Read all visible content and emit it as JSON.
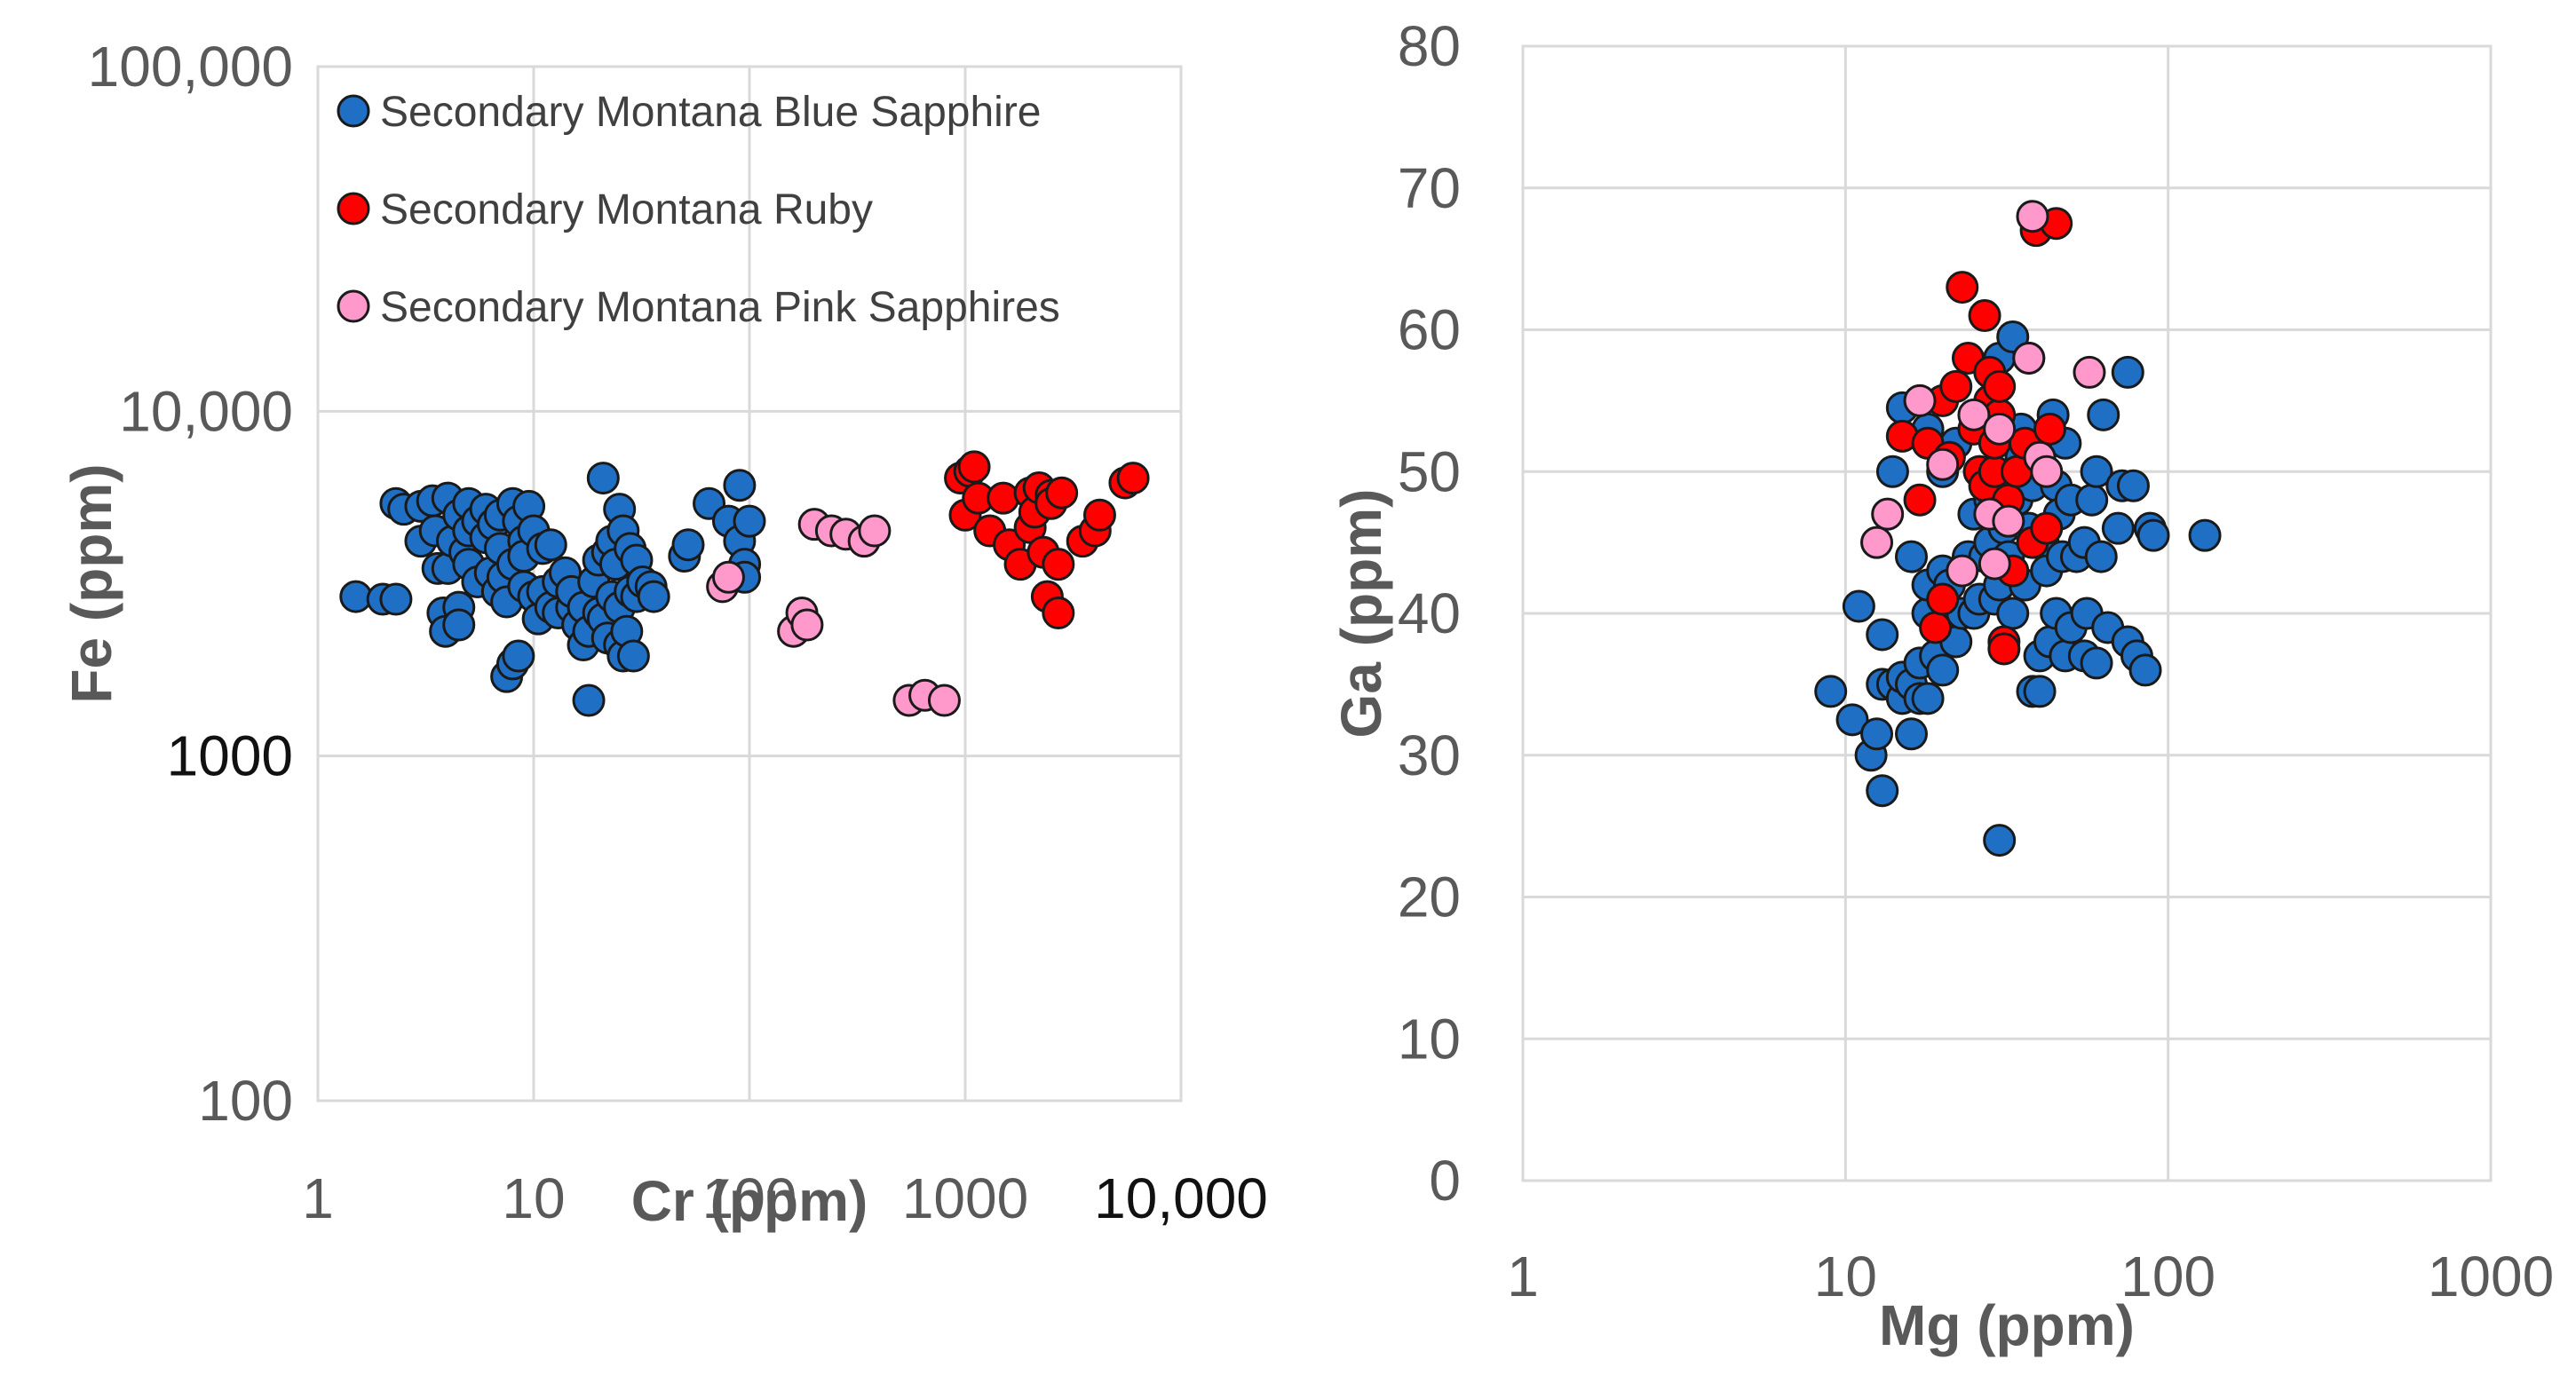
{
  "chart_data": [
    {
      "type": "scatter",
      "xscale": "log",
      "yscale": "log",
      "xlabel": "Cr (ppm)",
      "ylabel": "Fe (ppm)",
      "xlim": [
        1,
        10000
      ],
      "ylim": [
        100,
        100000
      ],
      "x_ticks": [
        1,
        10,
        100,
        1000,
        10000
      ],
      "x_tick_labels": [
        "1",
        "10",
        "100",
        "1000",
        "10,000"
      ],
      "y_ticks": [
        100,
        1000,
        10000,
        100000
      ],
      "y_tick_labels": [
        "100",
        "1000",
        "10,000",
        "100,000"
      ],
      "legend_position": "top-left",
      "series": [
        {
          "name": "Secondary Montana Blue Sapphire",
          "color": "#1f6fc5",
          "points": [
            [
              1.5,
              2900
            ],
            [
              2.0,
              2850
            ],
            [
              2.3,
              2850
            ],
            [
              2.3,
              5400
            ],
            [
              2.5,
              5200
            ],
            [
              3.0,
              4200
            ],
            [
              3.0,
              5300
            ],
            [
              3.4,
              5500
            ],
            [
              3.5,
              4500
            ],
            [
              3.6,
              3500
            ],
            [
              3.8,
              2600
            ],
            [
              3.9,
              2300
            ],
            [
              4.0,
              5600
            ],
            [
              4.0,
              3500
            ],
            [
              4.2,
              4200
            ],
            [
              4.5,
              5000
            ],
            [
              4.5,
              2700
            ],
            [
              4.5,
              2400
            ],
            [
              4.8,
              3900
            ],
            [
              5.0,
              5400
            ],
            [
              5.0,
              4500
            ],
            [
              5.0,
              3600
            ],
            [
              5.5,
              4800
            ],
            [
              5.5,
              3200
            ],
            [
              6.0,
              4300
            ],
            [
              6.0,
              5200
            ],
            [
              6.3,
              3400
            ],
            [
              6.5,
              4700
            ],
            [
              6.8,
              3000
            ],
            [
              7.0,
              5000
            ],
            [
              7.0,
              4000
            ],
            [
              7.2,
              3300
            ],
            [
              7.5,
              2800
            ],
            [
              7.5,
              1700
            ],
            [
              8.0,
              5400
            ],
            [
              8.0,
              3600
            ],
            [
              8.0,
              1850
            ],
            [
              8.5,
              4800
            ],
            [
              8.5,
              1950
            ],
            [
              9.0,
              4200
            ],
            [
              9.0,
              3800
            ],
            [
              9.0,
              3100
            ],
            [
              9.5,
              5300
            ],
            [
              10.0,
              2900
            ],
            [
              10.0,
              4500
            ],
            [
              10.5,
              2500
            ],
            [
              11.0,
              4000
            ],
            [
              11.0,
              3000
            ],
            [
              12.0,
              4100
            ],
            [
              12.0,
              2700
            ],
            [
              13.0,
              3200
            ],
            [
              13.0,
              2600
            ],
            [
              14.0,
              3400
            ],
            [
              15.0,
              2700
            ],
            [
              15.0,
              3000
            ],
            [
              16.0,
              2400
            ],
            [
              17.0,
              2100
            ],
            [
              17.0,
              2700
            ],
            [
              18.0,
              1450
            ],
            [
              18.0,
              2300
            ],
            [
              19.0,
              3200
            ],
            [
              20.0,
              3700
            ],
            [
              20.0,
              2600
            ],
            [
              21.0,
              6400
            ],
            [
              21.0,
              2500
            ],
            [
              22.0,
              3900
            ],
            [
              22.0,
              2200
            ],
            [
              23.0,
              4200
            ],
            [
              23.0,
              2900
            ],
            [
              24.0,
              3600
            ],
            [
              25.0,
              5200
            ],
            [
              25.0,
              2100
            ],
            [
              25.0,
              2700
            ],
            [
              26.0,
              4500
            ],
            [
              26.0,
              1950
            ],
            [
              27.0,
              2300
            ],
            [
              28.0,
              3000
            ],
            [
              28.0,
              4000
            ],
            [
              29.0,
              1950
            ],
            [
              30.0,
              3700
            ],
            [
              30.0,
              2900
            ],
            [
              32.0,
              3200
            ],
            [
              35.0,
              3100
            ],
            [
              36.0,
              2900
            ],
            [
              50.0,
              3800
            ],
            [
              52.0,
              4100
            ],
            [
              65.0,
              5400
            ],
            [
              80.0,
              4800
            ],
            [
              90.0,
              6100
            ],
            [
              90.0,
              4200
            ],
            [
              95.0,
              3600
            ],
            [
              95.0,
              3300
            ],
            [
              100.0,
              4800
            ]
          ]
        },
        {
          "name": "Secondary Montana Ruby",
          "color": "#ff0000",
          "points": [
            [
              950,
              6400
            ],
            [
              1000,
              5000
            ],
            [
              1050,
              6700
            ],
            [
              1100,
              6900
            ],
            [
              1150,
              5600
            ],
            [
              1300,
              4500
            ],
            [
              1500,
              5600
            ],
            [
              1600,
              4100
            ],
            [
              1800,
              3600
            ],
            [
              2000,
              5800
            ],
            [
              2000,
              4600
            ],
            [
              2100,
              5100
            ],
            [
              2200,
              6000
            ],
            [
              2300,
              3900
            ],
            [
              2400,
              2900
            ],
            [
              2500,
              5700
            ],
            [
              2500,
              5400
            ],
            [
              2700,
              3600
            ],
            [
              2700,
              2600
            ],
            [
              2800,
              5800
            ],
            [
              3500,
              4200
            ],
            [
              4000,
              4500
            ],
            [
              4200,
              5000
            ],
            [
              5500,
              6200
            ],
            [
              6000,
              6400
            ]
          ]
        },
        {
          "name": "Secondary Montana Pink Sapphires",
          "color": "#ff99cc",
          "points": [
            [
              75,
              3100
            ],
            [
              80,
              3300
            ],
            [
              160,
              2300
            ],
            [
              175,
              2600
            ],
            [
              185,
              2400
            ],
            [
              200,
              4700
            ],
            [
              240,
              4500
            ],
            [
              280,
              4400
            ],
            [
              340,
              4200
            ],
            [
              380,
              4500
            ],
            [
              550,
              1450
            ],
            [
              650,
              1500
            ],
            [
              800,
              1450
            ]
          ]
        }
      ]
    },
    {
      "type": "scatter",
      "xscale": "log",
      "yscale": "linear",
      "xlabel": "Mg (ppm)",
      "ylabel": "Ga (ppm)",
      "xlim": [
        1,
        1000
      ],
      "ylim": [
        0,
        80
      ],
      "x_ticks": [
        1,
        10,
        100,
        1000
      ],
      "x_tick_labels": [
        "1",
        "10",
        "100",
        "1000"
      ],
      "y_ticks": [
        0,
        10,
        20,
        30,
        40,
        50,
        60,
        70,
        80
      ],
      "y_tick_labels": [
        "0",
        "10",
        "20",
        "30",
        "40",
        "50",
        "60",
        "70",
        "80"
      ],
      "series": [
        {
          "name": "Secondary Montana Blue Sapphire",
          "color": "#1f6fc5",
          "points": [
            [
              9,
              34.5
            ],
            [
              10.5,
              32.5
            ],
            [
              11,
              40.5
            ],
            [
              12,
              30
            ],
            [
              12.5,
              31.5
            ],
            [
              13,
              27.5
            ],
            [
              13,
              35
            ],
            [
              13,
              38.5
            ],
            [
              14,
              35
            ],
            [
              14,
              50
            ],
            [
              15,
              34
            ],
            [
              15,
              35.5
            ],
            [
              15,
              54.5
            ],
            [
              16,
              31.5
            ],
            [
              16,
              35
            ],
            [
              16,
              44
            ],
            [
              17,
              34
            ],
            [
              17,
              36.5
            ],
            [
              17,
              55
            ],
            [
              18,
              34
            ],
            [
              18,
              40
            ],
            [
              18,
              42
            ],
            [
              18,
              53
            ],
            [
              19,
              37
            ],
            [
              20,
              36
            ],
            [
              20,
              43
            ],
            [
              20,
              50
            ],
            [
              21,
              42
            ],
            [
              22,
              38
            ],
            [
              22,
              52
            ],
            [
              23,
              40
            ],
            [
              24,
              44
            ],
            [
              25,
              40
            ],
            [
              25,
              47
            ],
            [
              26,
              41
            ],
            [
              26,
              50
            ],
            [
              27,
              44
            ],
            [
              28,
              45
            ],
            [
              28,
              48
            ],
            [
              29,
              41
            ],
            [
              30,
              24
            ],
            [
              30,
              42
            ],
            [
              30,
              58
            ],
            [
              31,
              46
            ],
            [
              32,
              44
            ],
            [
              33,
              40
            ],
            [
              33,
              59.5
            ],
            [
              34,
              48
            ],
            [
              35,
              51
            ],
            [
              35,
              53
            ],
            [
              36,
              42
            ],
            [
              37,
              46
            ],
            [
              38,
              34.5
            ],
            [
              38,
              49
            ],
            [
              40,
              34.5
            ],
            [
              40,
              37
            ],
            [
              41,
              45
            ],
            [
              42,
              43
            ],
            [
              43,
              38
            ],
            [
              44,
              54
            ],
            [
              45,
              40
            ],
            [
              45,
              49
            ],
            [
              46,
              47
            ],
            [
              47,
              44
            ],
            [
              48,
              37
            ],
            [
              48,
              52
            ],
            [
              50,
              39
            ],
            [
              50,
              48
            ],
            [
              52,
              44
            ],
            [
              55,
              37
            ],
            [
              55,
              45
            ],
            [
              56,
              40
            ],
            [
              58,
              48
            ],
            [
              60,
              50
            ],
            [
              60,
              36.5
            ],
            [
              62,
              44
            ],
            [
              63,
              54
            ],
            [
              65,
              39
            ],
            [
              70,
              46
            ],
            [
              72,
              49
            ],
            [
              75,
              38
            ],
            [
              75,
              57
            ],
            [
              78,
              49
            ],
            [
              80,
              37
            ],
            [
              85,
              36
            ],
            [
              88,
              46
            ],
            [
              90,
              45.5
            ],
            [
              130,
              45.5
            ]
          ]
        },
        {
          "name": "Secondary Montana Ruby",
          "color": "#ff0000",
          "points": [
            [
              15,
              52.5
            ],
            [
              17,
              48
            ],
            [
              18,
              52
            ],
            [
              19,
              39
            ],
            [
              20,
              41
            ],
            [
              20,
              55
            ],
            [
              21,
              51
            ],
            [
              22,
              56
            ],
            [
              23,
              63
            ],
            [
              24,
              58
            ],
            [
              25,
              53
            ],
            [
              26,
              50
            ],
            [
              27,
              49
            ],
            [
              27,
              61
            ],
            [
              28,
              55
            ],
            [
              28,
              57
            ],
            [
              29,
              50
            ],
            [
              29,
              52
            ],
            [
              30,
              54
            ],
            [
              30,
              56
            ],
            [
              31,
              38
            ],
            [
              31,
              37.5
            ],
            [
              32,
              48
            ],
            [
              33,
              43
            ],
            [
              34,
              50
            ],
            [
              36,
              52
            ],
            [
              37,
              58
            ],
            [
              38,
              45
            ],
            [
              39,
              67
            ],
            [
              40,
              51
            ],
            [
              42,
              46
            ],
            [
              43,
              53
            ],
            [
              45,
              67.5
            ]
          ]
        },
        {
          "name": "Secondary Montana Pink Sapphires",
          "color": "#ff99cc",
          "points": [
            [
              12.5,
              45
            ],
            [
              13.5,
              47
            ],
            [
              17,
              55
            ],
            [
              20,
              50.5
            ],
            [
              23,
              43
            ],
            [
              25,
              54
            ],
            [
              28,
              47
            ],
            [
              29,
              43.5
            ],
            [
              30,
              53
            ],
            [
              32,
              46.5
            ],
            [
              37,
              58
            ],
            [
              38,
              68
            ],
            [
              40,
              51
            ],
            [
              42,
              50
            ],
            [
              57,
              57
            ]
          ]
        }
      ]
    }
  ]
}
